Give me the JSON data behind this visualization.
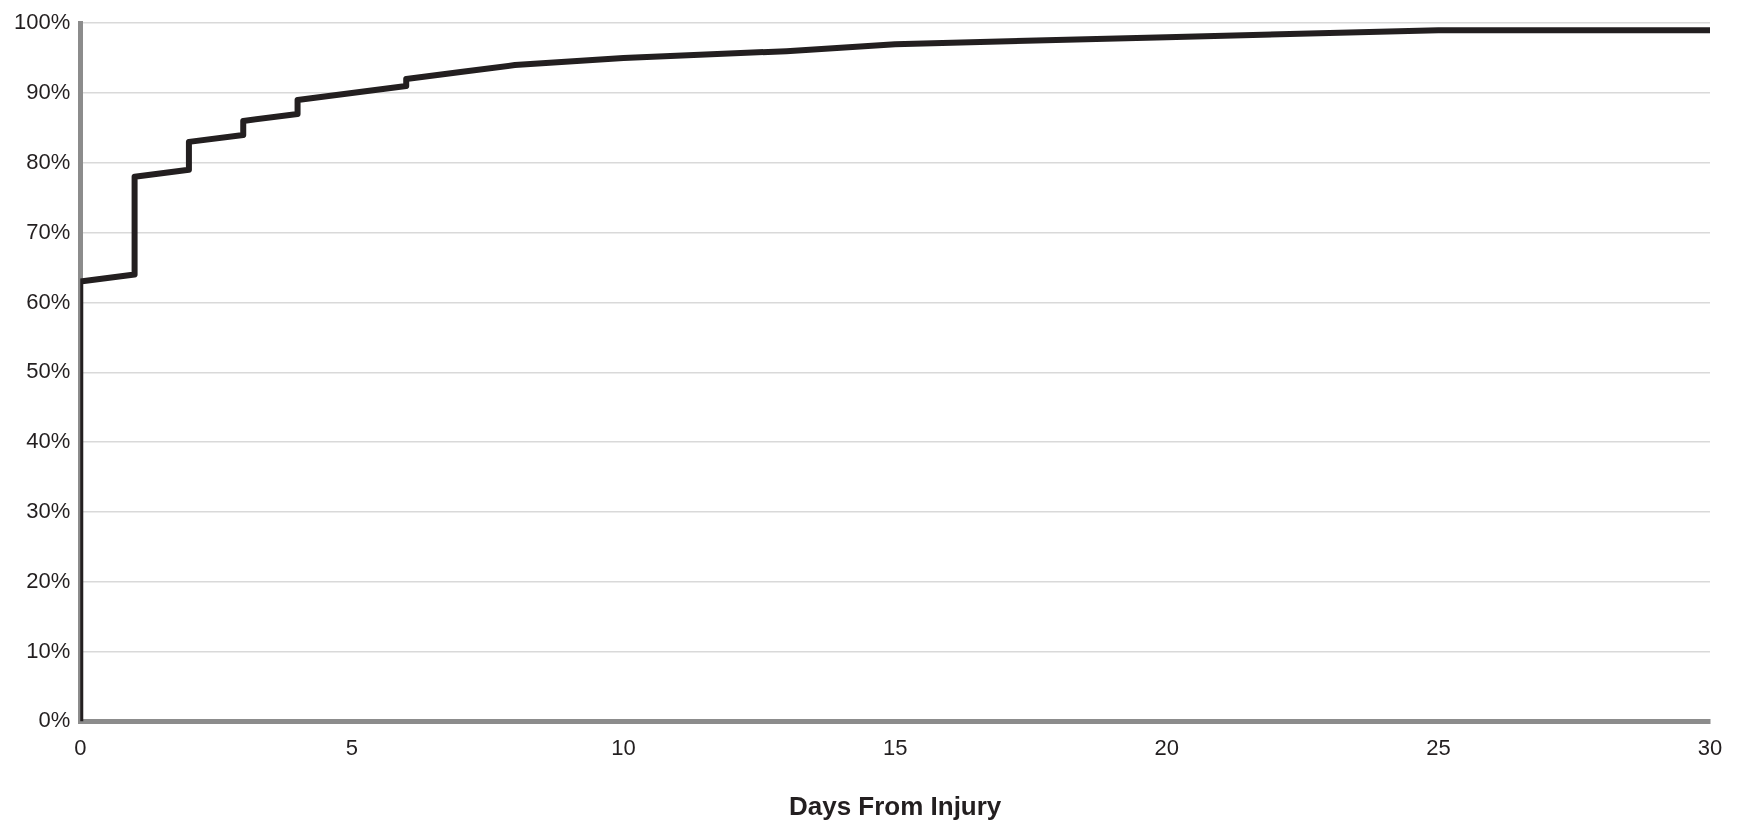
{
  "chart_data": {
    "type": "line",
    "xlabel": "Days From Injury",
    "series": [
      {
        "color": "#231f20",
        "x": [
          0,
          0,
          1,
          1,
          2,
          2,
          3,
          3,
          4,
          4,
          6,
          6,
          7,
          8,
          10,
          13,
          15,
          20,
          25,
          30
        ],
        "values": [
          0,
          63,
          64,
          78,
          79,
          83,
          84,
          86,
          87,
          89,
          91,
          92,
          93,
          94,
          95,
          96,
          97,
          98,
          99,
          99
        ]
      }
    ],
    "xlim": [
      0,
      30
    ],
    "xticks": [
      0,
      5,
      10,
      15,
      20,
      25,
      30
    ],
    "ylim": [
      0,
      100
    ],
    "yticks": [
      {
        "value": 0,
        "label": "0%"
      },
      {
        "value": 10,
        "label": "10%"
      },
      {
        "value": 20,
        "label": "20%"
      },
      {
        "value": 30,
        "label": "30%"
      },
      {
        "value": 40,
        "label": "40%"
      },
      {
        "value": 50,
        "label": "50%"
      },
      {
        "value": 60,
        "label": "60%"
      },
      {
        "value": 70,
        "label": "70%"
      },
      {
        "value": 80,
        "label": "80%"
      },
      {
        "value": 90,
        "label": "90%"
      },
      {
        "value": 100,
        "label": "100%"
      }
    ],
    "grid": "y",
    "legend": false,
    "marker": "none",
    "line_style": "solid"
  }
}
